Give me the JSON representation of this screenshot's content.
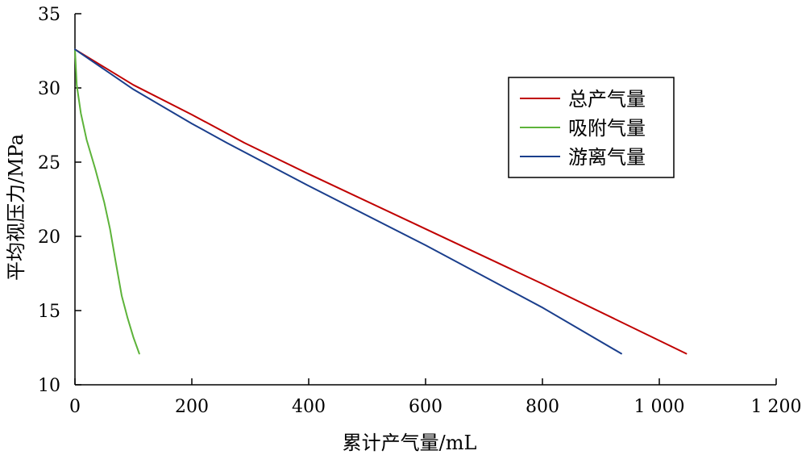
{
  "chart_data": {
    "type": "line",
    "xlabel": "累计产气量/mL",
    "ylabel": "平均视压力/MPa",
    "xlim": [
      0,
      1200
    ],
    "ylim": [
      10,
      35
    ],
    "xticks": [
      0,
      200,
      400,
      600,
      800,
      1000,
      1200
    ],
    "xtick_labels": [
      "0",
      "200",
      "400",
      "600",
      "800",
      "1 000",
      "1 200"
    ],
    "yticks": [
      10,
      15,
      20,
      25,
      30,
      35
    ],
    "ytick_labels": [
      "10",
      "15",
      "20",
      "25",
      "30",
      "35"
    ],
    "grid": false,
    "legend_position": "top-right",
    "series": [
      {
        "name": "总产气量",
        "color": "#c00000",
        "points": [
          [
            0,
            32.6
          ],
          [
            100,
            30.2
          ],
          [
            200,
            28.2
          ],
          [
            290,
            26.3
          ],
          [
            400,
            24.2
          ],
          [
            600,
            20.5
          ],
          [
            800,
            16.8
          ],
          [
            1046,
            12.1
          ]
        ]
      },
      {
        "name": "吸附气量",
        "color": "#5db33a",
        "points": [
          [
            0,
            32.6
          ],
          [
            3,
            30.2
          ],
          [
            10,
            28.3
          ],
          [
            20,
            26.5
          ],
          [
            35,
            24.5
          ],
          [
            50,
            22.3
          ],
          [
            60,
            20.5
          ],
          [
            70,
            18.2
          ],
          [
            80,
            16.0
          ],
          [
            90,
            14.5
          ],
          [
            100,
            13.2
          ],
          [
            110,
            12.1
          ]
        ]
      },
      {
        "name": "游离气量",
        "color": "#1a3e8c",
        "points": [
          [
            0,
            32.6
          ],
          [
            100,
            29.9
          ],
          [
            200,
            27.6
          ],
          [
            260,
            26.3
          ],
          [
            400,
            23.4
          ],
          [
            600,
            19.4
          ],
          [
            800,
            15.2
          ],
          [
            935,
            12.1
          ]
        ]
      }
    ]
  }
}
